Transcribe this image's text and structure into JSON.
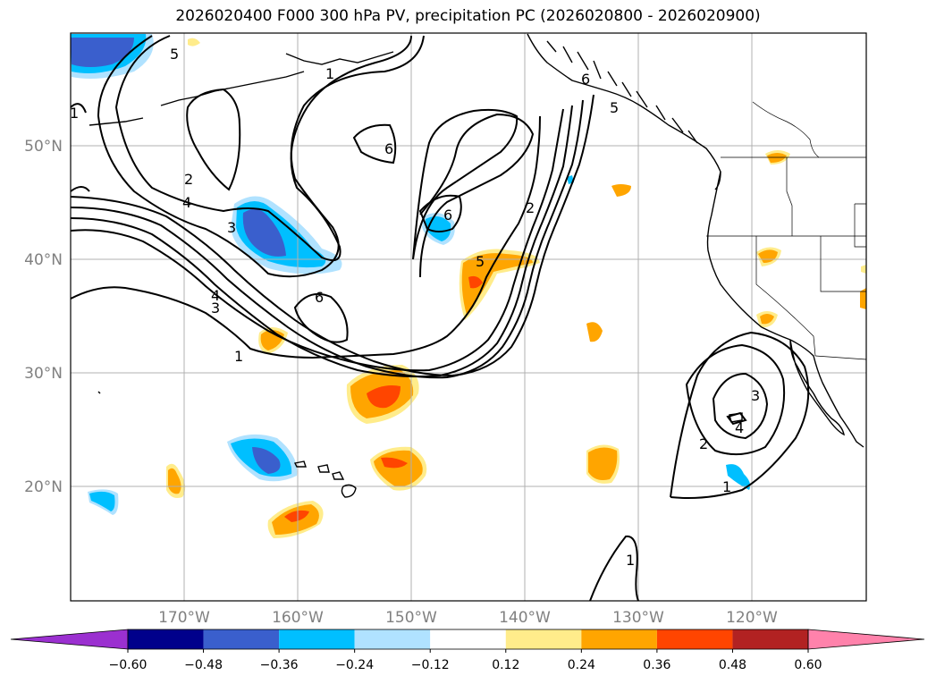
{
  "title": "2026020400 F000 300 hPa PV, precipitation PC (2026020800 - 2026020900)",
  "lat_labels": [
    "50°N",
    "40°N",
    "30°N",
    "20°N"
  ],
  "lon_labels": [
    "170°W",
    "160°W",
    "150°W",
    "140°W",
    "130°W",
    "120°W"
  ],
  "colorbar": {
    "ticks": [
      "−0.60",
      "−0.48",
      "−0.36",
      "−0.24",
      "−0.12",
      "0.12",
      "0.24",
      "0.36",
      "0.48",
      "0.60"
    ],
    "colors": [
      "#9b30d0",
      "#00008b",
      "#3a5fcd",
      "#00bfff",
      "#b0e2ff",
      "#ffffff",
      "#ffec8b",
      "#ffa500",
      "#ff4500",
      "#b22222",
      "#ff82ab"
    ]
  },
  "contour_labels": [
    "5",
    "1",
    "1",
    "6",
    "2",
    "4",
    "3",
    "6",
    "2",
    "5",
    "4",
    "3",
    "6",
    "1",
    "3",
    "4",
    "2",
    "1",
    "1",
    "6",
    "5"
  ],
  "colors": {
    "contour": "#000000",
    "coast": "#000000",
    "grid": "#b0b0b0",
    "axis_label": "#808080"
  }
}
